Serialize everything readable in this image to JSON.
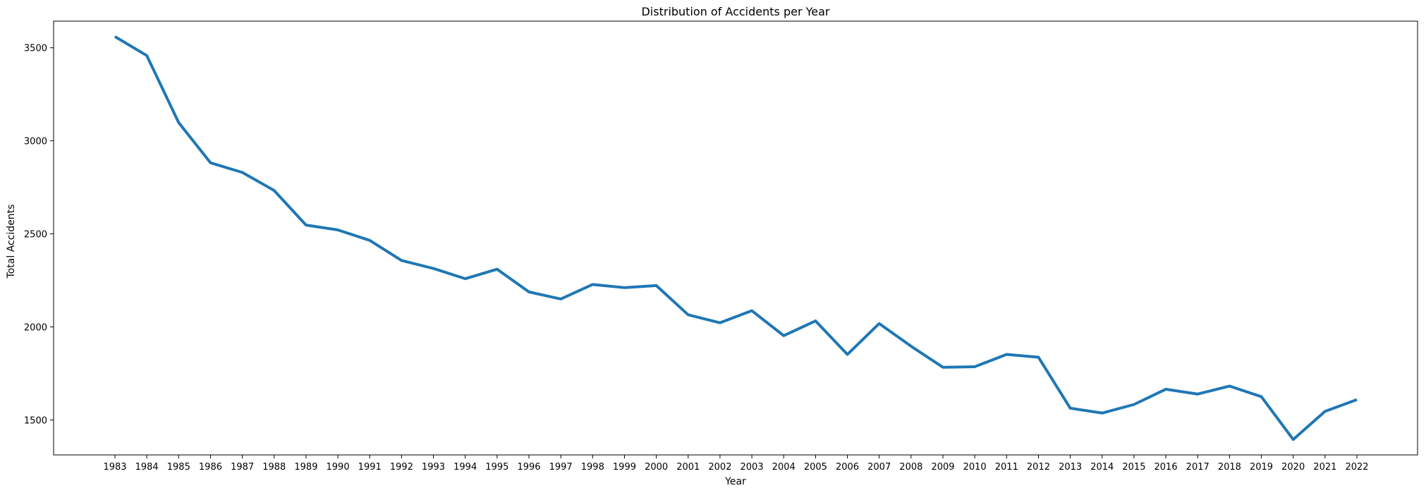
{
  "chart_data": {
    "type": "line",
    "title": "Distribution of Accidents per Year",
    "xlabel": "Year",
    "ylabel": "Total Accidents",
    "x": [
      "1983",
      "1984",
      "1985",
      "1986",
      "1987",
      "1988",
      "1989",
      "1990",
      "1991",
      "1992",
      "1993",
      "1994",
      "1995",
      "1996",
      "1997",
      "1998",
      "1999",
      "2000",
      "2001",
      "2002",
      "2003",
      "2004",
      "2005",
      "2006",
      "2007",
      "2008",
      "2009",
      "2010",
      "2011",
      "2012",
      "2013",
      "2014",
      "2015",
      "2016",
      "2017",
      "2018",
      "2019",
      "2020",
      "2021",
      "2022"
    ],
    "series": [
      {
        "values": [
          3560,
          3458,
          3098,
          2882,
          2830,
          2733,
          2547,
          2521,
          2465,
          2357,
          2314,
          2259,
          2310,
          2188,
          2150,
          2228,
          2211,
          2222,
          2065,
          2022,
          2087,
          1953,
          2032,
          1852,
          2018,
          1896,
          1783,
          1786,
          1852,
          1837,
          1563,
          1537,
          1583,
          1665,
          1639,
          1682,
          1625,
          1395,
          1546,
          1609
        ],
        "color": "#1f77b4"
      }
    ],
    "yticks": [
      1500,
      2000,
      2500,
      3000,
      3500
    ],
    "ylim": [
      1312,
      3643
    ],
    "grid": false,
    "legend": false
  }
}
